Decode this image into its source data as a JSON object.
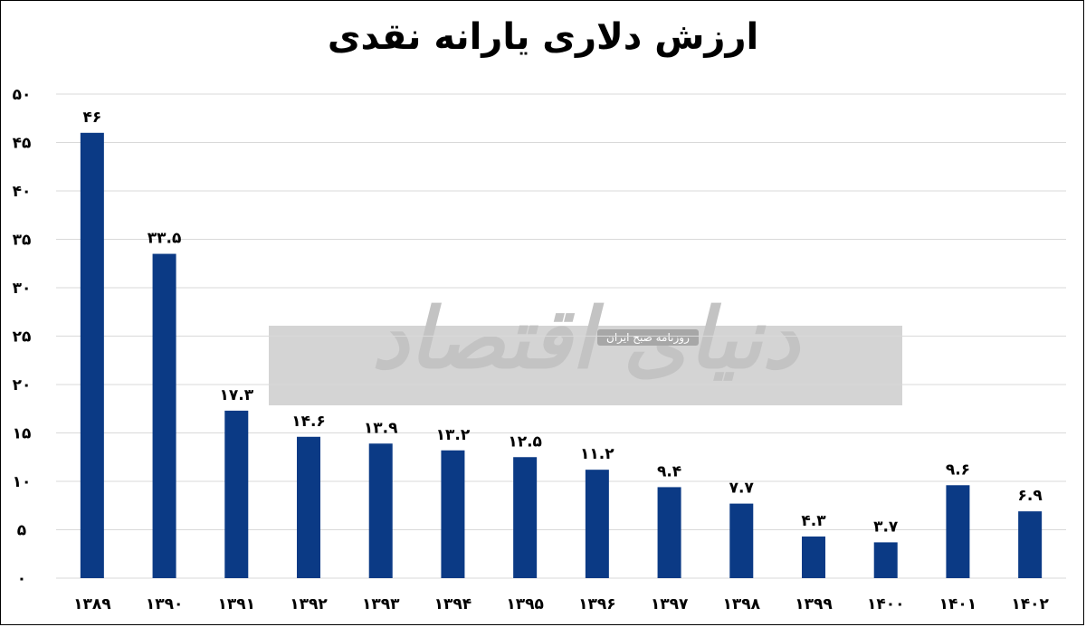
{
  "chart_data": {
    "type": "bar",
    "title": "ارزش دلاری یارانه نقدی",
    "xlabel": "",
    "ylabel": "",
    "categories": [
      "۱۳۸۹",
      "۱۳۹۰",
      "۱۳۹۱",
      "۱۳۹۲",
      "۱۳۹۳",
      "۱۳۹۴",
      "۱۳۹۵",
      "۱۳۹۶",
      "۱۳۹۷",
      "۱۳۹۸",
      "۱۳۹۹",
      "۱۴۰۰",
      "۱۴۰۱",
      "۱۴۰۲"
    ],
    "values": [
      46,
      33.5,
      17.3,
      14.6,
      13.9,
      13.2,
      12.5,
      11.2,
      9.4,
      7.7,
      4.3,
      3.7,
      9.6,
      6.9
    ],
    "data_labels": [
      "۴۶",
      "۳۳.۵",
      "۱۷.۳",
      "۱۴.۶",
      "۱۳.۹",
      "۱۳.۲",
      "۱۲.۵",
      "۱۱.۲",
      "۹.۴",
      "۷.۷",
      "۴.۳",
      "۳.۷",
      "۹.۶",
      "۶.۹"
    ],
    "ylim": [
      0,
      50
    ],
    "y_ticks": [
      0,
      5,
      10,
      15,
      20,
      25,
      30,
      35,
      40,
      45,
      50
    ],
    "y_tick_labels": [
      "۰",
      "۵",
      "۱۰",
      "۱۵",
      "۲۰",
      "۲۵",
      "۳۰",
      "۳۵",
      "۴۰",
      "۴۵",
      "۵۰"
    ],
    "grid": true,
    "bar_color": "#0b3a85",
    "grid_color": "#d9d9d9"
  },
  "watermark": {
    "logo_text": "دنیای اقتصاد",
    "subtitle": "روزنامه صبح ایران"
  }
}
